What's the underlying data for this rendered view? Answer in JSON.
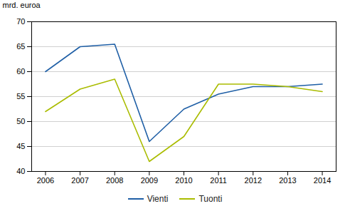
{
  "chart_data": {
    "type": "line",
    "x": [
      2006,
      2007,
      2008,
      2009,
      2010,
      2011,
      2012,
      2013,
      2014
    ],
    "series": [
      {
        "name": "Vienti",
        "color": "#1F5FA6",
        "values": [
          60.0,
          65.0,
          65.5,
          46.0,
          52.5,
          55.5,
          57.0,
          57.0,
          57.5
        ]
      },
      {
        "name": "Tuonti",
        "color": "#AABC00",
        "values": [
          52.0,
          56.5,
          58.5,
          42.0,
          47.0,
          57.5,
          57.5,
          57.0,
          56.0
        ]
      }
    ],
    "y_label": "mrd. euroa",
    "xlim": [
      2005.6,
      2014.4
    ],
    "xticks": [
      2006,
      2007,
      2008,
      2009,
      2010,
      2011,
      2012,
      2013,
      2014
    ],
    "ylim": [
      40,
      70
    ],
    "yticks": [
      40,
      45,
      50,
      55,
      60,
      65,
      70
    ],
    "grid": "y",
    "legend": "bottom"
  }
}
